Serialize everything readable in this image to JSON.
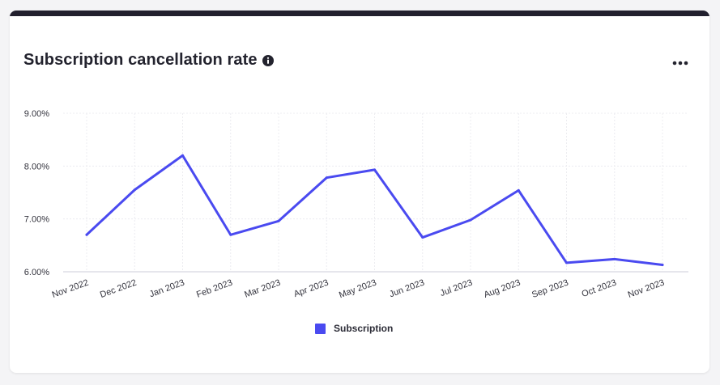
{
  "header": {
    "title": "Subscription cancellation rate",
    "info_icon": "info-icon",
    "menu_icon": "more-horizontal-icon"
  },
  "colors": {
    "series": "#4a4af0",
    "topbar": "#22202e"
  },
  "chart_data": {
    "type": "line",
    "categories": [
      "Nov 2022",
      "Dec 2022",
      "Jan 2023",
      "Feb 2023",
      "Mar 2023",
      "Apr 2023",
      "May 2023",
      "Jun 2023",
      "Jul 2023",
      "Aug 2023",
      "Sep 2023",
      "Oct 2023",
      "Nov 2023"
    ],
    "series": [
      {
        "name": "Subscription",
        "values": [
          6.7,
          7.55,
          8.2,
          6.7,
          6.96,
          7.78,
          7.93,
          6.65,
          6.98,
          7.54,
          6.17,
          6.24,
          6.13
        ],
        "color": "#4a4af0"
      }
    ],
    "y_ticks": [
      "9.00%",
      "8.00%",
      "7.00%",
      "6.00%"
    ],
    "ylim": [
      6.0,
      9.0
    ],
    "grid": true,
    "legend": "bottom-center"
  }
}
